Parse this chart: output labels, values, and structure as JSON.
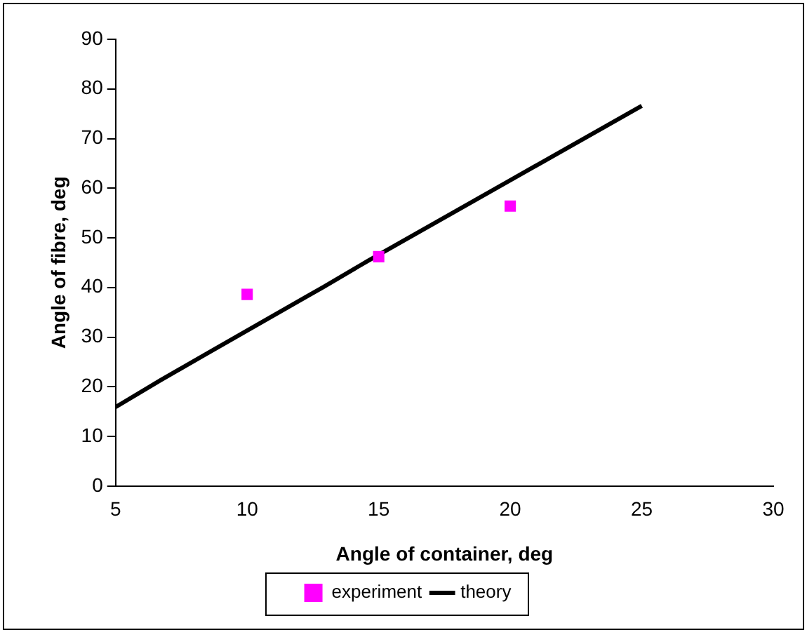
{
  "chart_data": {
    "type": "scatter",
    "xlabel": "Angle of container, deg",
    "ylabel": "Angle of fibre, deg",
    "xlim": [
      5,
      30
    ],
    "xticks": [
      5,
      10,
      15,
      20,
      25,
      30
    ],
    "ylim": [
      0,
      90
    ],
    "yticks": [
      0,
      10,
      20,
      30,
      40,
      50,
      60,
      70,
      80,
      90
    ],
    "grid": false,
    "legend": "bottom",
    "series": [
      {
        "name": "experiment",
        "type": "scatter",
        "marker": "square",
        "color": "#ff00ff",
        "x": [
          10,
          15,
          20
        ],
        "values": [
          38.6,
          46.2,
          56.4
        ]
      },
      {
        "name": "theory",
        "type": "line",
        "marker": "none",
        "line_style": "solid",
        "color": "#000000",
        "x": [
          5,
          6.7,
          9,
          12.3,
          12.9,
          14.6,
          25
        ],
        "values": [
          15.9,
          21.3,
          28.3,
          38.3,
          40.1,
          45.4,
          76.6
        ]
      }
    ]
  }
}
